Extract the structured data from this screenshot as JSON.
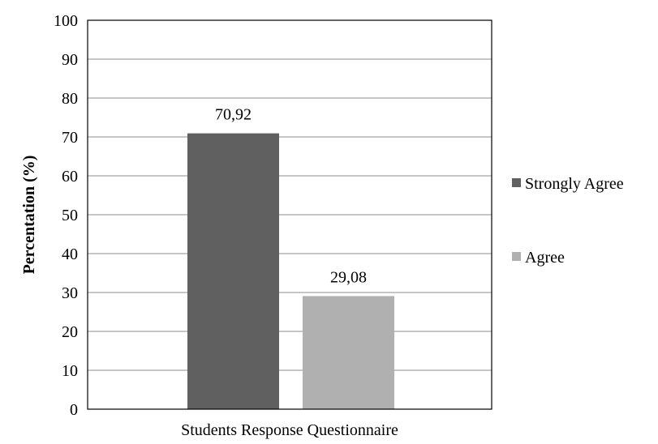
{
  "chart_data": {
    "type": "bar",
    "xlabel": "Students Response Questionnaire",
    "ylabel": "Percentation (%)",
    "ylim": [
      0,
      100
    ],
    "ytick_step": 10,
    "grid": true,
    "legend_position": "right",
    "series": [
      {
        "name": "Strongly Agree",
        "value": 70.92,
        "label": "70,92",
        "color": "#606060"
      },
      {
        "name": "Agree",
        "value": 29.08,
        "label": "29,08",
        "color": "#b0b0b0"
      }
    ]
  }
}
